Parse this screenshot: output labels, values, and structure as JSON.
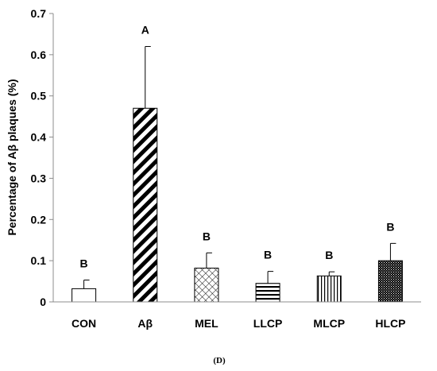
{
  "chart_data": {
    "type": "bar",
    "ylabel": "Percentage of Aβ plaques (%)",
    "ylim": [
      0,
      0.7
    ],
    "yticks": [
      "0",
      "0.1",
      "0.2",
      "0.3",
      "0.4",
      "0.5",
      "0.6",
      "0.7"
    ],
    "categories": [
      "CON",
      "Aβ",
      "MEL",
      "LLCP",
      "MLCP",
      "HLCP"
    ],
    "values": [
      0.032,
      0.47,
      0.082,
      0.045,
      0.063,
      0.1
    ],
    "errors": [
      0.021,
      0.15,
      0.037,
      0.029,
      0.01,
      0.042
    ],
    "significance": [
      "B",
      "A",
      "B",
      "B",
      "B",
      "B"
    ],
    "patterns": [
      "none",
      "wide-diagonal",
      "crosshatch",
      "horizontal",
      "vertical",
      "dense-dots"
    ],
    "panel_label": "(D)",
    "colors": {
      "bar_stroke": "#000000",
      "axis": "#8c8c8c",
      "background": "#ffffff"
    }
  }
}
